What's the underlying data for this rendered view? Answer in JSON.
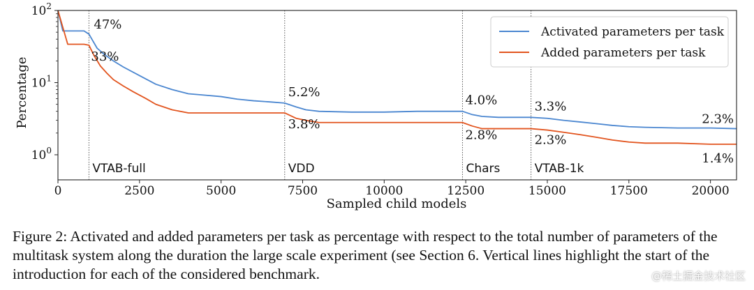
{
  "figure": {
    "caption": "Figure 2: Activated and added parameters per task as percentage with respect to the total number of parameters of the multitask system along the duration the large scale experiment (see Section 6. Vertical lines highlight the start of the introduction for each of the considered benchmark.",
    "watermark": "@稀土掘金技术社区"
  },
  "chart_data": {
    "type": "line",
    "xlabel": "Sampled child models",
    "ylabel": "Percentage",
    "xlim": [
      0,
      20800
    ],
    "ylim": [
      1,
      100
    ],
    "yscale": "log",
    "xticks": [
      0,
      2500,
      5000,
      7500,
      10000,
      12500,
      15000,
      17500,
      20000
    ],
    "yticks": [
      {
        "value": 1,
        "base": "10",
        "exp": "0"
      },
      {
        "value": 10,
        "base": "10",
        "exp": "1"
      },
      {
        "value": 100,
        "base": "10",
        "exp": "2"
      }
    ],
    "grid": false,
    "legend_position": "upper right",
    "series": [
      {
        "name": "Activated parameters per task",
        "color": "#4a86d0",
        "x": [
          0,
          150,
          300,
          500,
          800,
          950,
          1200,
          1400,
          1700,
          2000,
          2500,
          3000,
          3500,
          4000,
          4500,
          5000,
          5500,
          6000,
          6500,
          6950,
          7300,
          7600,
          8000,
          9000,
          10000,
          11000,
          12000,
          12400,
          12700,
          13000,
          13500,
          14000,
          14500,
          15000,
          15500,
          16000,
          16500,
          17000,
          17500,
          18000,
          19000,
          20000,
          20800
        ],
        "y": [
          100,
          52,
          52,
          52,
          52,
          47,
          30,
          25,
          20,
          16.5,
          12.5,
          9.5,
          8,
          7,
          6.7,
          6.4,
          5.9,
          5.6,
          5.4,
          5.2,
          4.6,
          4.2,
          4.0,
          3.9,
          3.9,
          4.0,
          4.0,
          4.0,
          3.6,
          3.4,
          3.3,
          3.3,
          3.3,
          3.2,
          3.0,
          2.85,
          2.7,
          2.55,
          2.45,
          2.4,
          2.35,
          2.35,
          2.3
        ]
      },
      {
        "name": "Added parameters per task",
        "color": "#e2541e",
        "x": [
          0,
          300,
          500,
          800,
          950,
          1100,
          1300,
          1500,
          1700,
          2000,
          2300,
          2700,
          3000,
          3500,
          4000,
          5000,
          6000,
          6950,
          7300,
          7600,
          8000,
          9000,
          10000,
          11000,
          12000,
          12400,
          12700,
          13000,
          13500,
          14000,
          14500,
          15000,
          15500,
          16000,
          16500,
          17000,
          17500,
          18000,
          19000,
          20000,
          20800
        ],
        "y": [
          100,
          34,
          34,
          34,
          33,
          24,
          17,
          13.5,
          11,
          9,
          7.5,
          6,
          5,
          4.2,
          3.8,
          3.8,
          3.8,
          3.8,
          3.2,
          3.0,
          2.8,
          2.8,
          2.8,
          2.8,
          2.8,
          2.8,
          2.5,
          2.3,
          2.3,
          2.3,
          2.3,
          2.2,
          2.05,
          1.9,
          1.75,
          1.6,
          1.5,
          1.45,
          1.45,
          1.4,
          1.4
        ]
      }
    ],
    "benchmarks": [
      {
        "name": "VTAB-full",
        "x": 950
      },
      {
        "name": "VDD",
        "x": 6950
      },
      {
        "name": "Chars",
        "x": 12400
      },
      {
        "name": "VTAB-1k",
        "x": 14500
      }
    ],
    "annotations": [
      {
        "text": "47%",
        "x": 950,
        "y": 47,
        "series": "Activated parameters per task"
      },
      {
        "text": "33%",
        "x": 950,
        "y": 33,
        "series": "Added parameters per task"
      },
      {
        "text": "5.2%",
        "x": 6950,
        "y": 5.2,
        "series": "Activated parameters per task"
      },
      {
        "text": "3.8%",
        "x": 6950,
        "y": 3.8,
        "series": "Added parameters per task"
      },
      {
        "text": "4.0%",
        "x": 12400,
        "y": 4.0,
        "series": "Activated parameters per task"
      },
      {
        "text": "2.8%",
        "x": 12400,
        "y": 2.8,
        "series": "Added parameters per task"
      },
      {
        "text": "3.3%",
        "x": 14500,
        "y": 3.3,
        "series": "Activated parameters per task"
      },
      {
        "text": "2.3%",
        "x": 14500,
        "y": 2.3,
        "series": "Added parameters per task"
      },
      {
        "text": "2.3%",
        "x": 20800,
        "y": 2.3,
        "series": "Activated parameters per task"
      },
      {
        "text": "1.4%",
        "x": 20800,
        "y": 1.4,
        "series": "Added parameters per task"
      }
    ]
  }
}
